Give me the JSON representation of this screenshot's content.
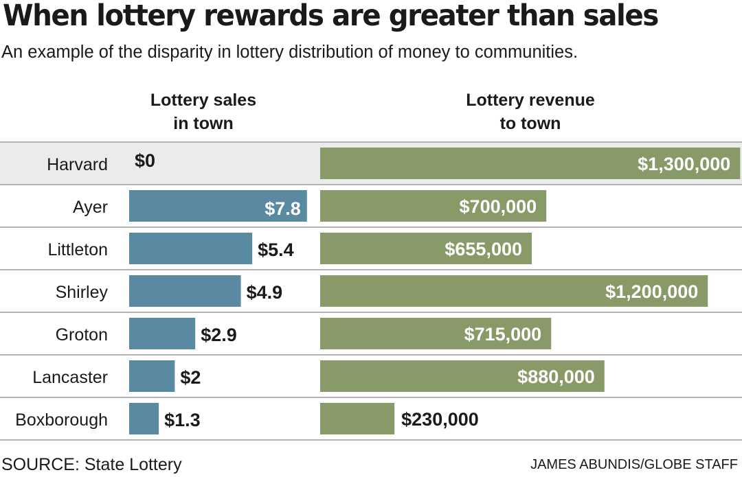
{
  "title": "When lottery rewards are greater than sales",
  "subtitle": "An example of the disparity in lottery distribution of money to communities.",
  "columns": {
    "sales": {
      "line1": "Lottery sales",
      "line2": "in town"
    },
    "revenue": {
      "line1": "Lottery revenue",
      "line2": "to town"
    }
  },
  "source": "SOURCE: State Lottery",
  "credit": "JAMES ABUNDIS/GLOBE STAFF",
  "colors": {
    "sales_bar": "#5a8aa2",
    "revenue_bar": "#879a67",
    "highlight_row": "#ebebeb",
    "divider": "#9a9a9a",
    "label_on_bar": "#ffffff",
    "label_off_bar": "#1a1a1a"
  },
  "chart_data": {
    "type": "bar",
    "orientation": "horizontal",
    "categories": [
      "Harvard",
      "Ayer",
      "Littleton",
      "Shirley",
      "Groton",
      "Lancaster",
      "Boxborough"
    ],
    "highlight_category": "Harvard",
    "series": [
      {
        "key": "sales",
        "values": [
          0,
          7.8,
          5.4,
          4.9,
          2.9,
          2,
          1.3
        ],
        "labels": [
          "$0",
          "$7.8",
          "$5.4",
          "$4.9",
          "$2.9",
          "$2",
          "$1.3"
        ],
        "axis_max": 8.5
      },
      {
        "key": "revenue",
        "values": [
          1300000,
          700000,
          655000,
          1200000,
          715000,
          880000,
          230000
        ],
        "labels": [
          "$1,300,000",
          "$700,000",
          "$655,000",
          "$1,200,000",
          "$715,000",
          "$880,000",
          "$230,000"
        ],
        "axis_max": 1310000
      }
    ],
    "grid": false,
    "legend": "none"
  }
}
